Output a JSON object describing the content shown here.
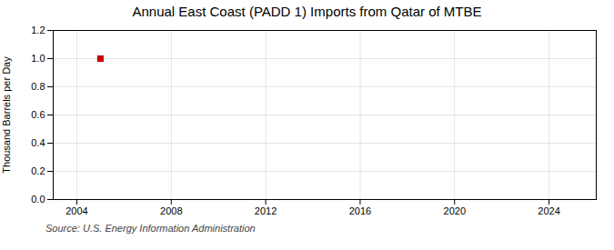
{
  "chart_data": {
    "type": "scatter",
    "title": "Annual East Coast (PADD 1) Imports from Qatar of MTBE",
    "ylabel": "Thousand Barrels per Day",
    "source": "Source: U.S. Energy Information Administration",
    "x": [
      2005
    ],
    "values": [
      1.0
    ],
    "color": "#cc0000",
    "marker": "square",
    "xlim": [
      2003,
      2026
    ],
    "ylim": [
      0.0,
      1.2
    ],
    "xticks": [
      2004,
      2008,
      2012,
      2016,
      2020,
      2024
    ],
    "yticks": [
      {
        "value": 0,
        "label": "0.0"
      },
      0.2,
      0.4,
      0.6,
      0.8,
      {
        "value": 1,
        "label": "1.0"
      },
      1.2
    ],
    "grid": true
  }
}
